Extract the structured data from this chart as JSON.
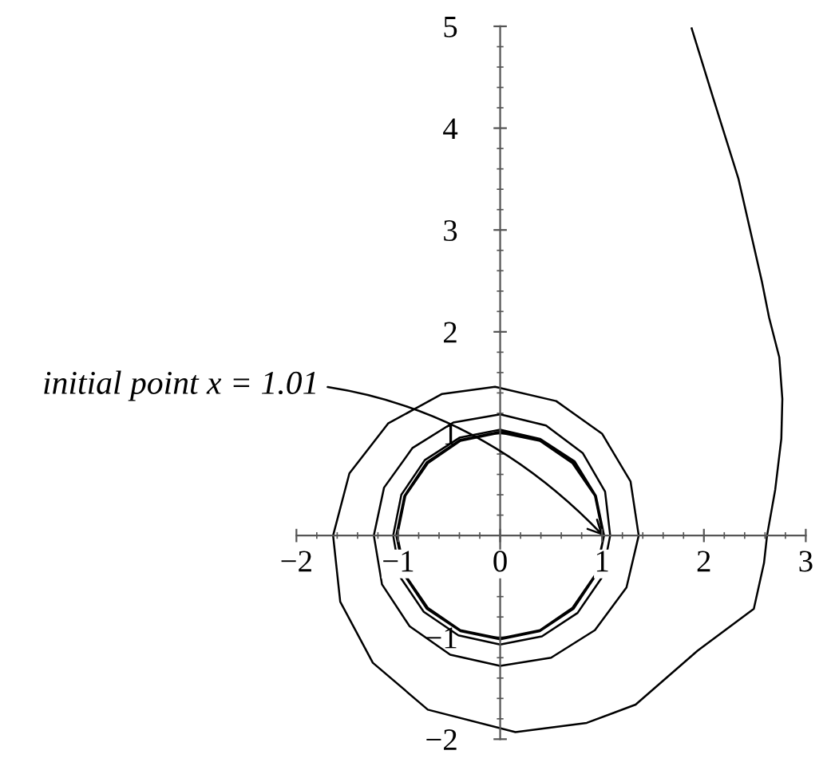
{
  "chart_data": {
    "type": "line",
    "xlim": [
      -2,
      3
    ],
    "ylim": [
      -2,
      5
    ],
    "xticks": [
      -2,
      -1,
      0,
      1,
      2,
      3
    ],
    "yticks": [
      -2,
      -1,
      1,
      2,
      3,
      4,
      5
    ],
    "grid": false,
    "marker": "none",
    "line_style": "solid",
    "annotations": [
      {
        "text": "initial point x = 1.01",
        "x": 1.01,
        "y": 0
      }
    ],
    "series": [
      {
        "color": "#000000",
        "x": [
          1.01,
          0.93,
          0.71,
          0.39,
          0,
          -0.39,
          -0.71,
          -0.93,
          -1.01,
          -0.93,
          -0.71,
          -0.39,
          0,
          0.39,
          0.71,
          0.93,
          1.02,
          0.94,
          0.72,
          0.39,
          0,
          -0.39,
          -0.72,
          -0.94,
          -1.02,
          -0.94,
          -0.72,
          -0.39,
          0,
          0.39,
          0.72,
          0.94,
          1.02,
          0.94,
          0.73,
          0.39,
          0,
          -0.4,
          -0.74,
          -0.97,
          -1.05,
          -0.98,
          -0.75,
          -0.41,
          0,
          0.41,
          0.76,
          1.0,
          1.08,
          1.03,
          0.81,
          0.45,
          0,
          -0.46,
          -0.86,
          -1.14,
          -1.24,
          -1.16,
          -0.89,
          -0.49,
          0,
          0.5,
          0.93,
          1.24,
          1.36,
          1.28,
          1.0,
          0.55,
          -0.05,
          -0.57,
          -1.1,
          -1.48,
          -1.64,
          -1.57,
          -1.25,
          -0.71,
          0.15,
          0.85,
          1.33,
          1.94,
          2.49,
          2.59,
          2.62,
          2.7,
          2.76,
          2.77,
          2.74,
          2.64,
          2.57,
          2.34,
          2.09,
          1.88
        ],
        "values": [
          0,
          0.39,
          0.71,
          0.93,
          1.01,
          0.93,
          0.71,
          0.39,
          0,
          -0.39,
          -0.71,
          -0.93,
          -1.01,
          -0.93,
          -0.71,
          -0.39,
          0,
          0.39,
          0.72,
          0.94,
          1.02,
          0.94,
          0.72,
          0.39,
          0,
          -0.39,
          -0.72,
          -0.94,
          -1.02,
          -0.94,
          -0.72,
          -0.39,
          0,
          0.39,
          0.73,
          0.95,
          1.04,
          0.96,
          0.74,
          0.4,
          0,
          -0.41,
          -0.75,
          -0.98,
          -1.07,
          -0.99,
          -0.76,
          -0.41,
          0,
          0.43,
          0.81,
          1.08,
          1.19,
          1.11,
          0.86,
          0.47,
          0,
          -0.48,
          -0.89,
          -1.17,
          -1.28,
          -1.2,
          -0.93,
          -0.51,
          0,
          0.53,
          1.0,
          1.32,
          1.46,
          1.39,
          1.1,
          0.61,
          0,
          -0.65,
          -1.25,
          -1.71,
          -1.93,
          -1.84,
          -1.66,
          -1.13,
          -0.72,
          -0.27,
          0,
          0.45,
          0.95,
          1.34,
          1.75,
          2.14,
          2.49,
          3.5,
          4.3,
          4.98
        ]
      }
    ]
  }
}
